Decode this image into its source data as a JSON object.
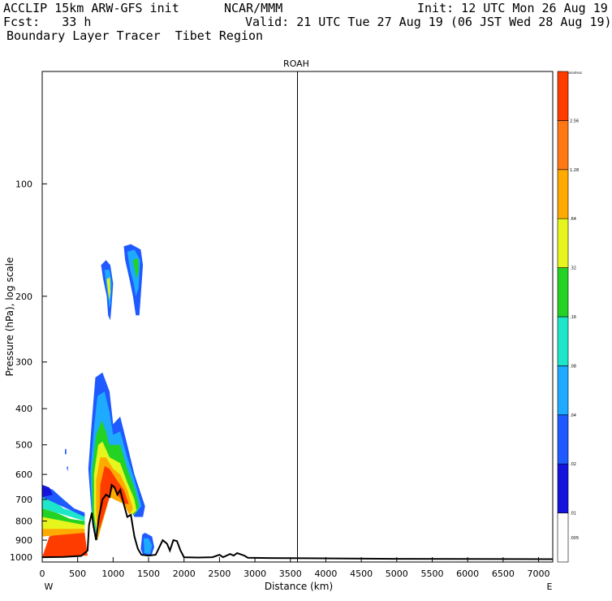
{
  "header": {
    "model": "ACCLIP 15km ARW-GFS init",
    "org": "NCAR/MMM",
    "init": "Init: 12 UTC Mon 26 Aug 19",
    "fcst": "Fcst:   33 h",
    "valid": "Valid: 21 UTC Tue 27 Aug 19 (06 JST Wed 28 Aug 19)",
    "field": "Boundary Layer Tracer  Tibet Region"
  },
  "chart_data": {
    "type": "heatmap",
    "title": "ROAH",
    "xlabel": "Distance (km)",
    "ylabel": "Pressure (hPa), log scale",
    "x_ticks": [
      "0",
      "500",
      "1000",
      "1500",
      "2000",
      "2500",
      "3000",
      "3500",
      "4000",
      "4500",
      "5000",
      "5500",
      "6000",
      "6500",
      "7000"
    ],
    "y_ticks": [
      "100",
      "200",
      "300",
      "400",
      "500",
      "600",
      "700",
      "800",
      "900",
      "1000"
    ],
    "xlim": [
      0,
      7200
    ],
    "ylim_hPa": [
      1030,
      50
    ],
    "y_scale": "log",
    "x_end_left": "W",
    "x_end_right": "E",
    "marker_line_x_km": 3600,
    "colorbar": {
      "top_label": "Dimensionless",
      "labels": [
        ".005",
        ".01",
        ".02",
        ".04",
        ".08",
        ".16",
        ".32",
        ".64",
        "1.28",
        "2.56"
      ],
      "colors": [
        "#ffffff",
        "#1414dc",
        "#1e5aff",
        "#1eaaff",
        "#1ee6c8",
        "#23d223",
        "#e6f51e",
        "#ffaa00",
        "#ff7814",
        "#ff3c00"
      ]
    },
    "terrain_profile": [
      [
        0,
        1000
      ],
      [
        300,
        998
      ],
      [
        550,
        992
      ],
      [
        640,
        960
      ],
      [
        660,
        820
      ],
      [
        700,
        760
      ],
      [
        720,
        820
      ],
      [
        760,
        900
      ],
      [
        800,
        780
      ],
      [
        850,
        700
      ],
      [
        900,
        680
      ],
      [
        950,
        690
      ],
      [
        980,
        640
      ],
      [
        1020,
        650
      ],
      [
        1060,
        680
      ],
      [
        1100,
        660
      ],
      [
        1150,
        720
      ],
      [
        1200,
        780
      ],
      [
        1250,
        770
      ],
      [
        1300,
        880
      ],
      [
        1350,
        950
      ],
      [
        1400,
        985
      ],
      [
        1500,
        990
      ],
      [
        1600,
        985
      ],
      [
        1700,
        900
      ],
      [
        1760,
        920
      ],
      [
        1800,
        960
      ],
      [
        1850,
        900
      ],
      [
        1900,
        905
      ],
      [
        1950,
        960
      ],
      [
        2000,
        1000
      ],
      [
        2200,
        1002
      ],
      [
        2400,
        1000
      ],
      [
        2500,
        985
      ],
      [
        2550,
        1000
      ],
      [
        2650,
        980
      ],
      [
        2700,
        990
      ],
      [
        2750,
        975
      ],
      [
        2850,
        990
      ],
      [
        2900,
        1003
      ],
      [
        3200,
        1005
      ],
      [
        5000,
        1010
      ],
      [
        7200,
        1012
      ]
    ],
    "tracer_plumes": [
      {
        "level": 9,
        "points": [
          [
            0,
            1000
          ],
          [
            100,
            880
          ],
          [
            300,
            850
          ],
          [
            500,
            850
          ],
          [
            600,
            860
          ],
          [
            640,
            990
          ],
          [
            0,
            1000
          ]
        ]
      },
      {
        "level": 7,
        "points": [
          [
            0,
            840
          ],
          [
            100,
            820
          ],
          [
            300,
            820
          ],
          [
            500,
            830
          ],
          [
            600,
            840
          ],
          [
            600,
            860
          ],
          [
            0,
            880
          ]
        ]
      },
      {
        "level": 6,
        "points": [
          [
            0,
            780
          ],
          [
            100,
            780
          ],
          [
            300,
            790
          ],
          [
            500,
            805
          ],
          [
            600,
            820
          ],
          [
            600,
            840
          ],
          [
            0,
            840
          ]
        ]
      },
      {
        "level": 5,
        "points": [
          [
            0,
            740
          ],
          [
            200,
            760
          ],
          [
            400,
            790
          ],
          [
            600,
            800
          ],
          [
            600,
            820
          ],
          [
            0,
            780
          ]
        ]
      },
      {
        "level": 4,
        "points": [
          [
            0,
            690
          ],
          [
            150,
            700
          ],
          [
            300,
            740
          ],
          [
            500,
            760
          ],
          [
            600,
            780
          ],
          [
            600,
            800
          ],
          [
            0,
            740
          ]
        ]
      },
      {
        "level": 2,
        "points": [
          [
            0,
            640
          ],
          [
            150,
            660
          ],
          [
            300,
            700
          ],
          [
            450,
            740
          ],
          [
            600,
            760
          ],
          [
            600,
            780
          ],
          [
            0,
            690
          ]
        ]
      },
      {
        "level": 1,
        "points": [
          [
            0,
            640
          ],
          [
            100,
            650
          ],
          [
            150,
            680
          ],
          [
            0,
            690
          ]
        ]
      },
      {
        "level": 2,
        "points": [
          [
            650,
            580
          ],
          [
            700,
            430
          ],
          [
            750,
            330
          ],
          [
            850,
            320
          ],
          [
            950,
            360
          ],
          [
            1000,
            440
          ],
          [
            1100,
            420
          ],
          [
            1200,
            500
          ],
          [
            1300,
            600
          ],
          [
            1450,
            730
          ],
          [
            1420,
            780
          ],
          [
            1300,
            780
          ],
          [
            1100,
            660
          ],
          [
            900,
            690
          ],
          [
            780,
            900
          ],
          [
            700,
            780
          ]
        ]
      },
      {
        "level": 3,
        "points": [
          [
            680,
            590
          ],
          [
            730,
            450
          ],
          [
            780,
            370
          ],
          [
            880,
            360
          ],
          [
            950,
            410
          ],
          [
            1000,
            470
          ],
          [
            1100,
            460
          ],
          [
            1200,
            540
          ],
          [
            1300,
            620
          ],
          [
            1400,
            730
          ],
          [
            1300,
            770
          ],
          [
            1150,
            720
          ],
          [
            950,
            690
          ],
          [
            780,
            900
          ],
          [
            700,
            780
          ]
        ]
      },
      {
        "level": 5,
        "points": [
          [
            700,
            590
          ],
          [
            760,
            470
          ],
          [
            840,
            430
          ],
          [
            900,
            460
          ],
          [
            950,
            500
          ],
          [
            1000,
            500
          ],
          [
            1100,
            500
          ],
          [
            1200,
            580
          ],
          [
            1300,
            650
          ],
          [
            1370,
            730
          ],
          [
            1300,
            770
          ],
          [
            1150,
            720
          ],
          [
            950,
            690
          ],
          [
            780,
            900
          ],
          [
            710,
            760
          ]
        ]
      },
      {
        "level": 6,
        "points": [
          [
            730,
            600
          ],
          [
            790,
            500
          ],
          [
            850,
            490
          ],
          [
            950,
            540
          ],
          [
            1100,
            560
          ],
          [
            1200,
            630
          ],
          [
            1300,
            700
          ],
          [
            1330,
            750
          ],
          [
            1260,
            770
          ],
          [
            1150,
            720
          ],
          [
            950,
            690
          ],
          [
            780,
            900
          ],
          [
            730,
            760
          ]
        ]
      },
      {
        "level": 7,
        "points": [
          [
            760,
            620
          ],
          [
            820,
            540
          ],
          [
            900,
            540
          ],
          [
            1000,
            580
          ],
          [
            1100,
            600
          ],
          [
            1200,
            660
          ],
          [
            1280,
            740
          ],
          [
            1230,
            770
          ],
          [
            1150,
            720
          ],
          [
            950,
            690
          ],
          [
            780,
            900
          ],
          [
            760,
            740
          ]
        ]
      },
      {
        "level": 9,
        "points": [
          [
            820,
            640
          ],
          [
            880,
            570
          ],
          [
            950,
            580
          ],
          [
            1050,
            620
          ],
          [
            1150,
            660
          ],
          [
            1220,
            720
          ],
          [
            1150,
            720
          ],
          [
            1000,
            650
          ],
          [
            950,
            690
          ],
          [
            800,
            850
          ]
        ]
      },
      {
        "level": 2,
        "points": [
          [
            1410,
            870
          ],
          [
            1450,
            860
          ],
          [
            1550,
            880
          ],
          [
            1580,
            940
          ],
          [
            1540,
            990
          ],
          [
            1420,
            985
          ],
          [
            1390,
            950
          ]
        ]
      },
      {
        "level": 3,
        "points": [
          [
            1430,
            890
          ],
          [
            1500,
            890
          ],
          [
            1550,
            930
          ],
          [
            1520,
            980
          ],
          [
            1440,
            975
          ]
        ]
      },
      {
        "level": 2,
        "points": [
          [
            830,
            165
          ],
          [
            900,
            160
          ],
          [
            960,
            165
          ],
          [
            1000,
            185
          ],
          [
            980,
            210
          ],
          [
            960,
            232
          ],
          [
            930,
            225
          ],
          [
            910,
            200
          ],
          [
            860,
            180
          ]
        ]
      },
      {
        "level": 3,
        "points": [
          [
            880,
            170
          ],
          [
            950,
            170
          ],
          [
            980,
            185
          ],
          [
            965,
            210
          ],
          [
            945,
            215
          ],
          [
            930,
            200
          ],
          [
            900,
            185
          ]
        ]
      },
      {
        "level": 6,
        "points": [
          [
            910,
            180
          ],
          [
            955,
            178
          ],
          [
            960,
            195
          ],
          [
            945,
            205
          ],
          [
            930,
            195
          ]
        ]
      },
      {
        "level": 2,
        "points": [
          [
            1150,
            147
          ],
          [
            1250,
            145
          ],
          [
            1390,
            150
          ],
          [
            1420,
            165
          ],
          [
            1390,
            200
          ],
          [
            1370,
            225
          ],
          [
            1320,
            225
          ],
          [
            1280,
            200
          ],
          [
            1230,
            180
          ],
          [
            1170,
            160
          ]
        ]
      },
      {
        "level": 3,
        "points": [
          [
            1200,
            152
          ],
          [
            1300,
            150
          ],
          [
            1380,
            160
          ],
          [
            1360,
            190
          ],
          [
            1320,
            200
          ],
          [
            1290,
            185
          ],
          [
            1240,
            170
          ]
        ]
      },
      {
        "level": 5,
        "points": [
          [
            1280,
            160
          ],
          [
            1350,
            158
          ],
          [
            1360,
            170
          ],
          [
            1330,
            180
          ]
        ]
      },
      {
        "level": 2,
        "points": [
          [
            320,
            515
          ],
          [
            340,
            512
          ],
          [
            340,
            530
          ],
          [
            320,
            530
          ]
        ]
      },
      {
        "level": 2,
        "points": [
          [
            345,
            575
          ],
          [
            365,
            570
          ],
          [
            360,
            590
          ]
        ]
      }
    ]
  }
}
